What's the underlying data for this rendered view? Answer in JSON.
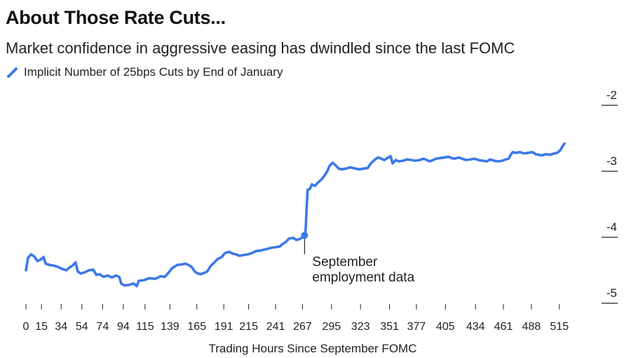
{
  "chart_data": {
    "type": "line",
    "title": "About Those Rate Cuts...",
    "subtitle": "Market confidence in aggressive easing has dwindled since the last FOMC",
    "xlabel": "Trading Hours Since September FOMC",
    "ylabel": "",
    "xlim": [
      0,
      530
    ],
    "ylim": [
      -5,
      -2
    ],
    "y_ticks": [
      -2,
      -3,
      -4,
      -5
    ],
    "y_tick_labels": [
      "-2",
      "-3",
      "-4",
      "-5"
    ],
    "y_axis_position": "right",
    "x_ticks": [
      0,
      15,
      34,
      54,
      74,
      94,
      115,
      139,
      165,
      191,
      215,
      241,
      267,
      295,
      323,
      351,
      377,
      405,
      434,
      461,
      488,
      515
    ],
    "x_tick_labels": [
      "0",
      "15",
      "34",
      "54",
      "74",
      "94",
      "115",
      "139",
      "165",
      "191",
      "215",
      "241",
      "267",
      "295",
      "323",
      "351",
      "377",
      "405",
      "434",
      "461",
      "488",
      "515"
    ],
    "grid": false,
    "legend_position": "top-left",
    "series": [
      {
        "name": "Implicit Number of 25bps Cuts by End of January",
        "color": "#3d78e8",
        "points": [
          [
            0,
            -4.5
          ],
          [
            2,
            -4.31
          ],
          [
            5,
            -4.26
          ],
          [
            8,
            -4.29
          ],
          [
            11,
            -4.36
          ],
          [
            14,
            -4.34
          ],
          [
            17,
            -4.3
          ],
          [
            19,
            -4.4
          ],
          [
            23,
            -4.42
          ],
          [
            27,
            -4.43
          ],
          [
            31,
            -4.45
          ],
          [
            35,
            -4.48
          ],
          [
            39,
            -4.5
          ],
          [
            42,
            -4.46
          ],
          [
            45,
            -4.43
          ],
          [
            48,
            -4.38
          ],
          [
            50,
            -4.52
          ],
          [
            53,
            -4.55
          ],
          [
            57,
            -4.53
          ],
          [
            61,
            -4.5
          ],
          [
            65,
            -4.49
          ],
          [
            68,
            -4.57
          ],
          [
            71,
            -4.56
          ],
          [
            75,
            -4.6
          ],
          [
            79,
            -4.58
          ],
          [
            83,
            -4.61
          ],
          [
            87,
            -4.58
          ],
          [
            90,
            -4.6
          ],
          [
            92,
            -4.7
          ],
          [
            95,
            -4.73
          ],
          [
            100,
            -4.72
          ],
          [
            104,
            -4.7
          ],
          [
            107,
            -4.74
          ],
          [
            109,
            -4.66
          ],
          [
            114,
            -4.65
          ],
          [
            119,
            -4.62
          ],
          [
            125,
            -4.63
          ],
          [
            130,
            -4.59
          ],
          [
            134,
            -4.6
          ],
          [
            137,
            -4.55
          ],
          [
            141,
            -4.47
          ],
          [
            146,
            -4.42
          ],
          [
            151,
            -4.41
          ],
          [
            154,
            -4.4
          ],
          [
            157,
            -4.42
          ],
          [
            160,
            -4.45
          ],
          [
            163,
            -4.52
          ],
          [
            166,
            -4.55
          ],
          [
            169,
            -4.56
          ],
          [
            172,
            -4.54
          ],
          [
            175,
            -4.52
          ],
          [
            178,
            -4.44
          ],
          [
            182,
            -4.38
          ],
          [
            185,
            -4.33
          ],
          [
            189,
            -4.3
          ],
          [
            192,
            -4.24
          ],
          [
            196,
            -4.22
          ],
          [
            200,
            -4.25
          ],
          [
            203,
            -4.26
          ],
          [
            206,
            -4.28
          ],
          [
            210,
            -4.27
          ],
          [
            214,
            -4.26
          ],
          [
            218,
            -4.24
          ],
          [
            222,
            -4.21
          ],
          [
            227,
            -4.2
          ],
          [
            232,
            -4.18
          ],
          [
            237,
            -4.16
          ],
          [
            241,
            -4.15
          ],
          [
            245,
            -4.14
          ],
          [
            248,
            -4.1
          ],
          [
            251,
            -4.07
          ],
          [
            254,
            -4.02
          ],
          [
            258,
            -4.01
          ],
          [
            261,
            -4.04
          ],
          [
            264,
            -4.03
          ],
          [
            266,
            -4.01
          ],
          [
            268,
            -4.0
          ],
          [
            270,
            -3.9
          ],
          [
            271,
            -3.55
          ],
          [
            272,
            -3.28
          ],
          [
            274,
            -3.27
          ],
          [
            276,
            -3.2
          ],
          [
            279,
            -3.22
          ],
          [
            282,
            -3.17
          ],
          [
            285,
            -3.13
          ],
          [
            288,
            -3.07
          ],
          [
            291,
            -3.0
          ],
          [
            293,
            -2.92
          ],
          [
            296,
            -2.87
          ],
          [
            299,
            -2.91
          ],
          [
            302,
            -2.96
          ],
          [
            305,
            -2.97
          ],
          [
            309,
            -2.96
          ],
          [
            313,
            -2.94
          ],
          [
            318,
            -2.96
          ],
          [
            322,
            -2.97
          ],
          [
            326,
            -2.96
          ],
          [
            330,
            -2.95
          ],
          [
            333,
            -2.88
          ],
          [
            337,
            -2.82
          ],
          [
            340,
            -2.79
          ],
          [
            343,
            -2.81
          ],
          [
            346,
            -2.83
          ],
          [
            349,
            -2.8
          ],
          [
            352,
            -2.77
          ],
          [
            354,
            -2.88
          ],
          [
            357,
            -2.83
          ],
          [
            360,
            -2.85
          ],
          [
            364,
            -2.84
          ],
          [
            368,
            -2.82
          ],
          [
            372,
            -2.83
          ],
          [
            376,
            -2.84
          ],
          [
            380,
            -2.83
          ],
          [
            384,
            -2.81
          ],
          [
            387,
            -2.83
          ],
          [
            390,
            -2.85
          ],
          [
            393,
            -2.83
          ],
          [
            396,
            -2.81
          ],
          [
            400,
            -2.8
          ],
          [
            404,
            -2.79
          ],
          [
            408,
            -2.78
          ],
          [
            411,
            -2.8
          ],
          [
            414,
            -2.81
          ],
          [
            418,
            -2.79
          ],
          [
            421,
            -2.81
          ],
          [
            425,
            -2.83
          ],
          [
            429,
            -2.82
          ],
          [
            433,
            -2.81
          ],
          [
            437,
            -2.83
          ],
          [
            441,
            -2.84
          ],
          [
            445,
            -2.85
          ],
          [
            448,
            -2.82
          ],
          [
            452,
            -2.84
          ],
          [
            456,
            -2.85
          ],
          [
            460,
            -2.84
          ],
          [
            463,
            -2.82
          ],
          [
            466,
            -2.81
          ],
          [
            468,
            -2.75
          ],
          [
            470,
            -2.71
          ],
          [
            473,
            -2.72
          ],
          [
            477,
            -2.71
          ],
          [
            481,
            -2.73
          ],
          [
            485,
            -2.72
          ],
          [
            489,
            -2.71
          ],
          [
            492,
            -2.74
          ],
          [
            495,
            -2.75
          ],
          [
            498,
            -2.76
          ],
          [
            502,
            -2.74
          ],
          [
            506,
            -2.75
          ],
          [
            510,
            -2.73
          ],
          [
            513,
            -2.72
          ],
          [
            516,
            -2.68
          ],
          [
            518,
            -2.62
          ],
          [
            520,
            -2.58
          ]
        ]
      }
    ],
    "annotations": [
      {
        "x": 269,
        "y": -3.97,
        "text_lines": [
          "September",
          "employment data"
        ]
      }
    ]
  }
}
